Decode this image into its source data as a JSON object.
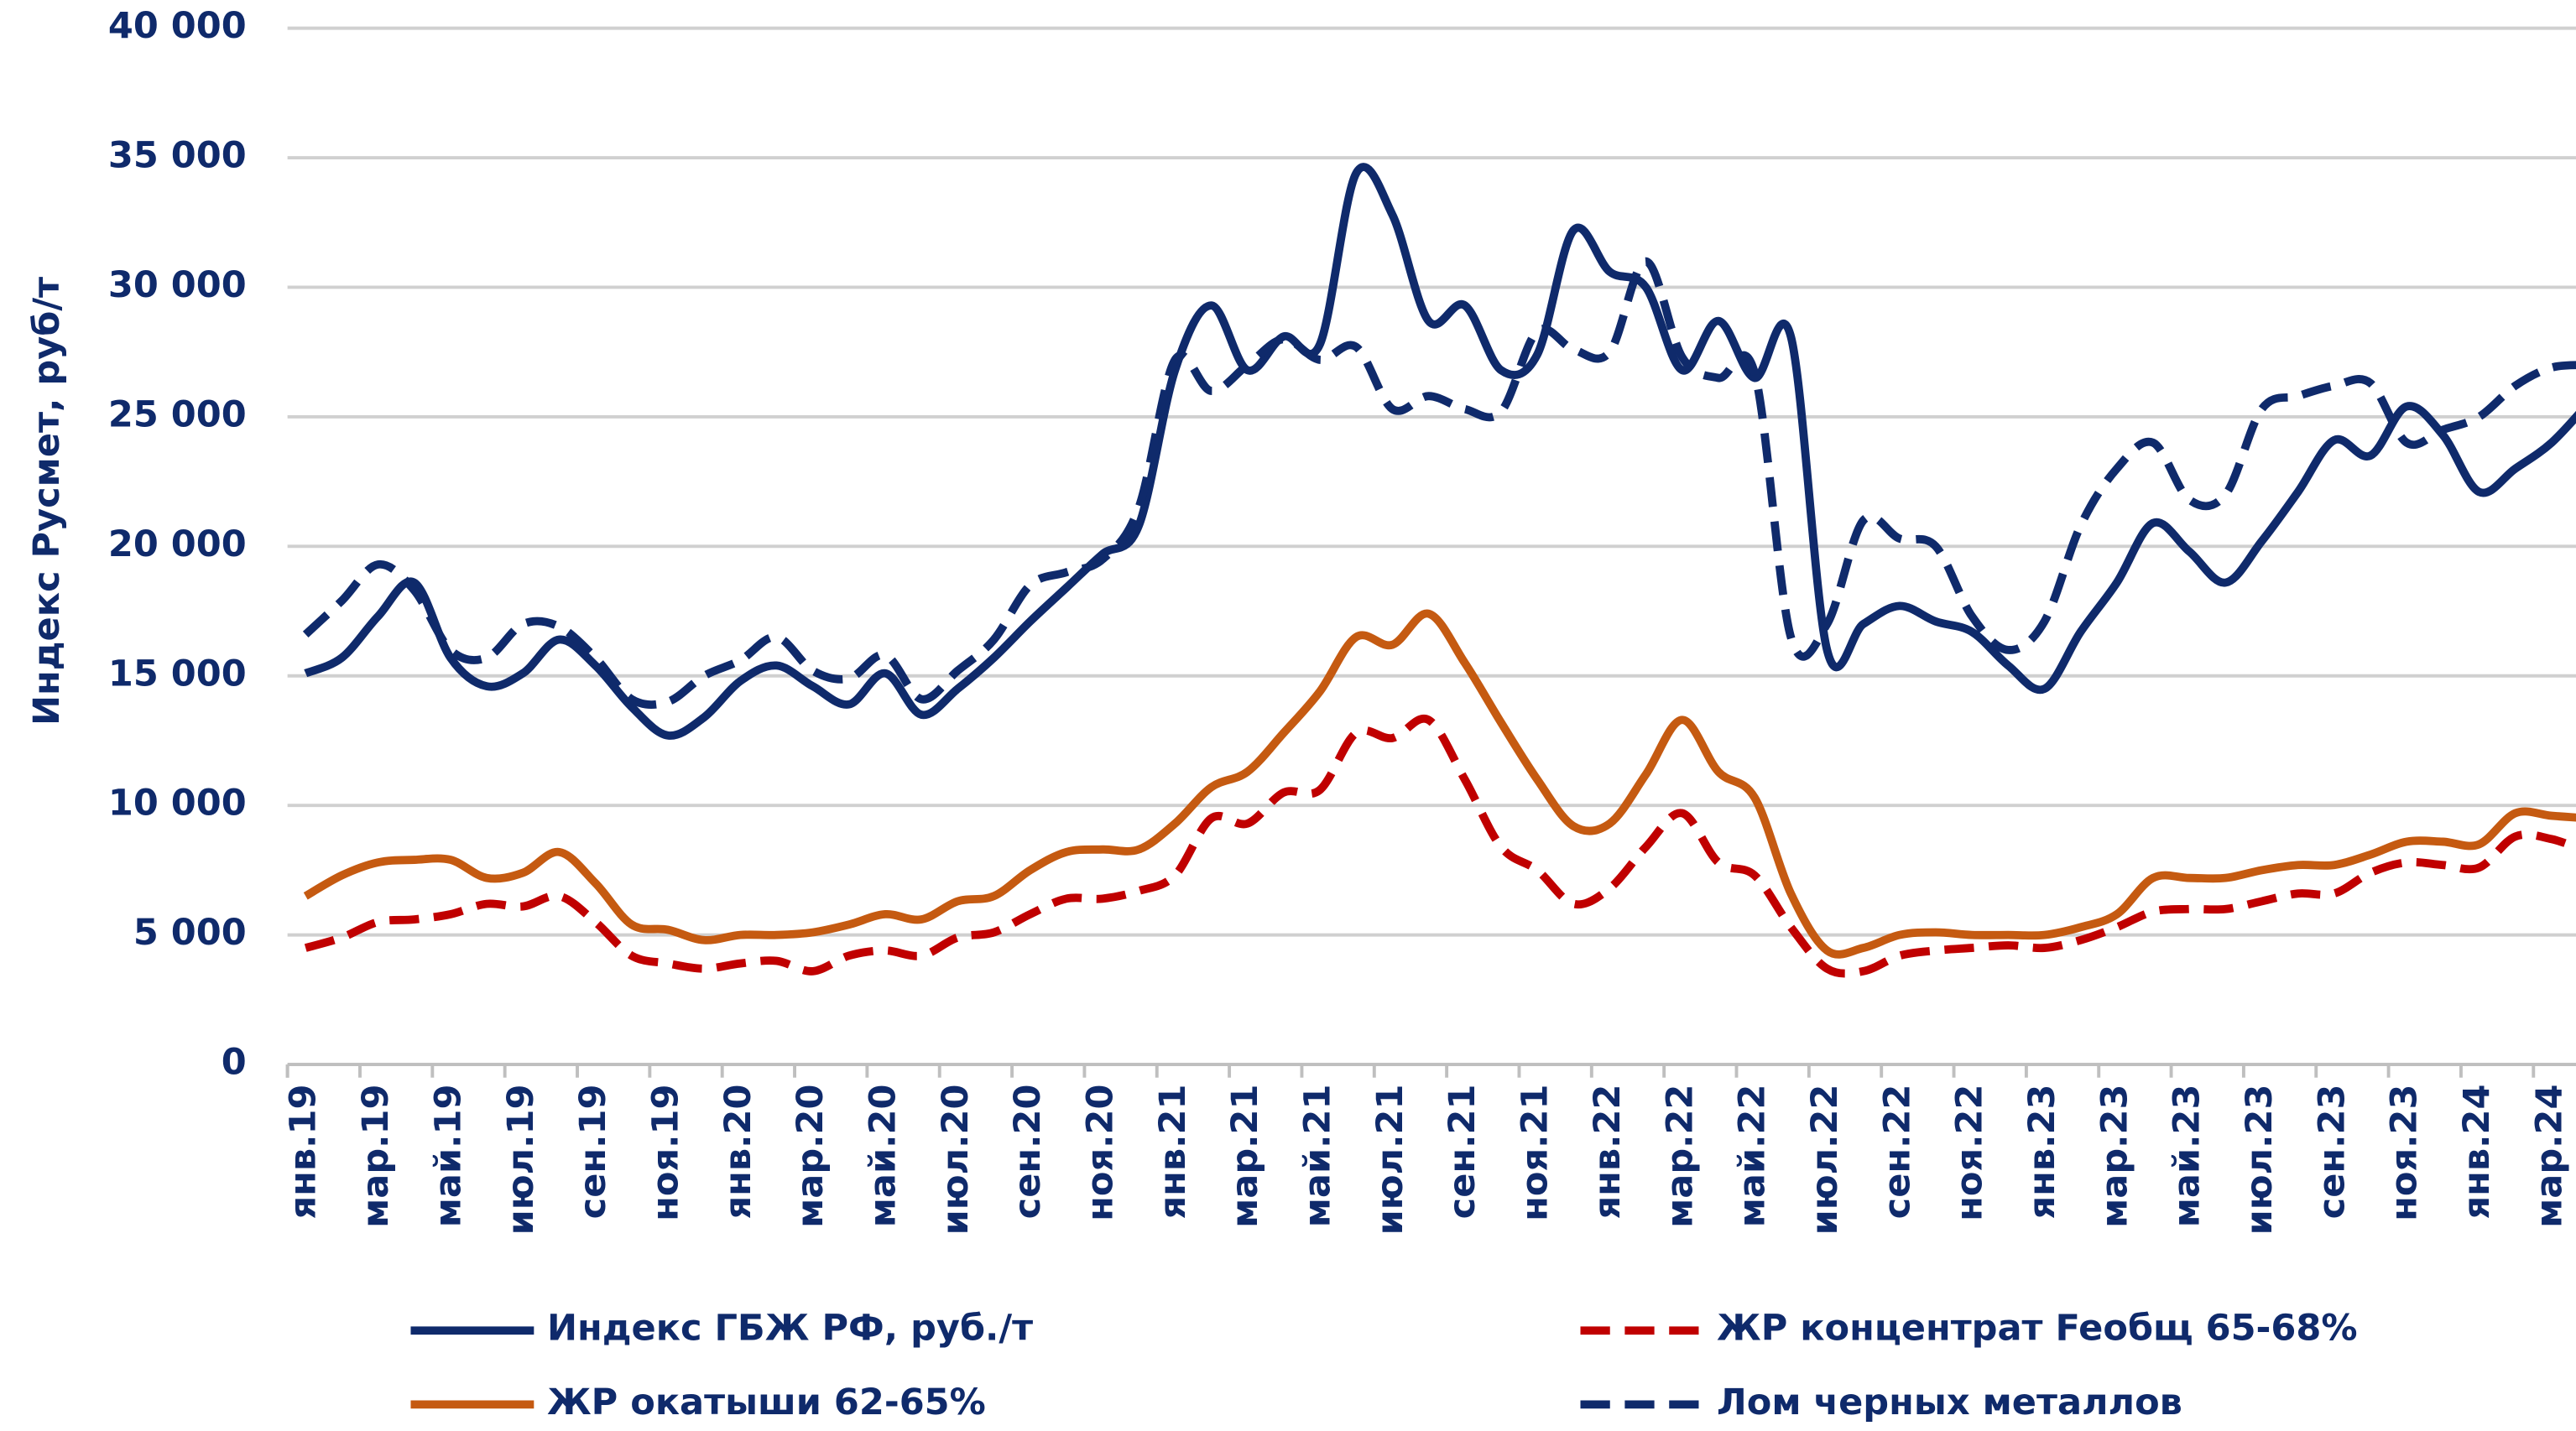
{
  "chart_data": {
    "type": "line",
    "y_label": "Индекс Русмет, руб/т",
    "categories": [
      "янв.19",
      null,
      "мар.19",
      null,
      "май.19",
      null,
      "июл.19",
      null,
      "сен.19",
      null,
      "ноя.19",
      null,
      "янв.20",
      null,
      "мар.20",
      null,
      "май.20",
      null,
      "июл.20",
      null,
      "сен.20",
      null,
      "ноя.20",
      null,
      "янв.21",
      null,
      "мар.21",
      null,
      "май.21",
      null,
      "июл.21",
      null,
      "сен.21",
      null,
      "ноя.21",
      null,
      "янв.22",
      null,
      "мар.22",
      null,
      "май.22",
      null,
      "июл.22",
      null,
      "сен.22",
      null,
      "ноя.22",
      null,
      "янв.23",
      null,
      "мар.23",
      null,
      "май.23",
      null,
      "июл.23",
      null,
      "сен.23",
      null,
      "ноя.23",
      null,
      "янв.24",
      null,
      "мар.24",
      null
    ],
    "series": [
      {
        "name": "Индекс ГБЖ РФ, руб./т",
        "color": "#0f2a6b",
        "dash": false,
        "label_color": "#375623",
        "values": [
          15100,
          15700,
          17300,
          18600,
          15700,
          14600,
          15100,
          16400,
          15400,
          13800,
          12700,
          13400,
          14800,
          15400,
          14600,
          13900,
          15100,
          13500,
          14500,
          15700,
          17100,
          18400,
          19700,
          20800,
          26800,
          29300,
          26800,
          28100,
          27800,
          34400,
          32800,
          28700,
          29300,
          26800,
          27400,
          32200,
          30600,
          30000,
          26800,
          28700,
          26500,
          28100,
          16000,
          17000,
          17700,
          17100,
          16700,
          15400,
          14500,
          16700,
          18600,
          20900,
          19800,
          18600,
          20200,
          22100,
          24100,
          23500,
          25400,
          24300,
          22100,
          23000,
          24000,
          25500
        ]
      },
      {
        "name": "ЖР концентрат Feобщ 65-68%",
        "color": "#c00000",
        "dash": true,
        "label_color": "#c00000",
        "values": [
          4500,
          4900,
          5500,
          5600,
          5800,
          6200,
          6100,
          6500,
          5500,
          4200,
          3900,
          3700,
          3900,
          4000,
          3600,
          4200,
          4400,
          4200,
          4900,
          5100,
          5800,
          6400,
          6400,
          6700,
          7300,
          9500,
          9300,
          10500,
          10600,
          12800,
          12600,
          13300,
          11000,
          8400,
          7500,
          6200,
          6800,
          8400,
          9700,
          7800,
          7300,
          5300,
          3700,
          3600,
          4200,
          4400,
          4500,
          4600,
          4500,
          4800,
          5300,
          5900,
          6000,
          6000,
          6300,
          6600,
          6600,
          7400,
          7800,
          7700,
          7600,
          8800,
          8700,
          8200
        ]
      },
      {
        "name": "ЖР окатыши 62-65%",
        "color": "#c55a11",
        "dash": false,
        "label_color": "#c00000",
        "values": [
          6500,
          7300,
          7800,
          7900,
          7900,
          7200,
          7400,
          8200,
          7000,
          5400,
          5200,
          4800,
          5000,
          5000,
          5100,
          5400,
          5800,
          5600,
          6300,
          6500,
          7500,
          8200,
          8300,
          8300,
          9300,
          10700,
          11300,
          12800,
          14400,
          16500,
          16200,
          17400,
          15500,
          13200,
          11000,
          9200,
          9300,
          11200,
          13300,
          11300,
          10300,
          6600,
          4400,
          4500,
          5000,
          5100,
          5000,
          5000,
          5000,
          5300,
          5800,
          7200,
          7200,
          7200,
          7500,
          7700,
          7700,
          8100,
          8600,
          8600,
          8500,
          9700,
          9600,
          9500
        ]
      },
      {
        "name": "Лом черных металлов",
        "color": "#0f2a6b",
        "dash": true,
        "label_color": "#0f2a6b",
        "values": [
          16600,
          17900,
          19300,
          18300,
          16000,
          15700,
          17000,
          16900,
          15700,
          14100,
          14000,
          15000,
          15600,
          16500,
          15200,
          14900,
          15800,
          14100,
          15200,
          16400,
          18500,
          19000,
          19500,
          21500,
          27200,
          26000,
          27000,
          28000,
          27200,
          27700,
          25300,
          25800,
          25300,
          25200,
          28300,
          27600,
          27500,
          31000,
          27300,
          26500,
          26700,
          16500,
          17000,
          21000,
          20300,
          20000,
          17300,
          16000,
          17100,
          20800,
          23000,
          24000,
          21800,
          22000,
          25300,
          25800,
          26200,
          26300,
          24000,
          24500,
          25000,
          26200,
          26900,
          27000
        ]
      }
    ],
    "ylim": [
      0,
      40000
    ],
    "yticks": [
      0,
      {
        "value": 5000,
        "label": "5 000"
      },
      {
        "value": 10000,
        "label": "10 000"
      },
      {
        "value": 15000,
        "label": "15 000"
      },
      {
        "value": 20000,
        "label": "20 000"
      },
      {
        "value": 25000,
        "label": "25 000"
      },
      {
        "value": 30000,
        "label": "30 000"
      },
      {
        "value": 35000,
        "label": "35 000"
      },
      {
        "value": 40000,
        "label": "40 000"
      }
    ],
    "grid": true
  }
}
